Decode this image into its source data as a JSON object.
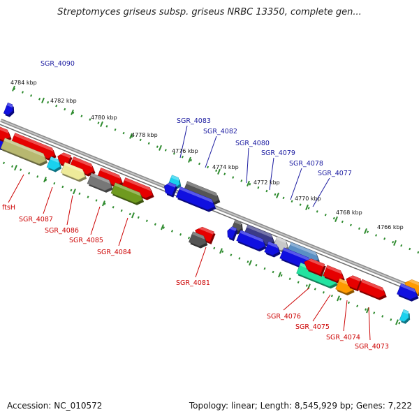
{
  "title": "Streptomyces griseus subsp. griseus NRBC 13350, complete gen...",
  "footer": {
    "accession": "Accession: NC_010572",
    "summary": "Topology: linear; Length: 8,545,929 bp; Genes: 7,222"
  },
  "colors": {
    "backbone": "#8c8c8c",
    "tick": "#2e8b2e",
    "label_top": "#1a1aa0",
    "label_bottom": "#cc0000",
    "red": "#e60000",
    "blue": "#1010e0",
    "cyan": "#1ad1ee",
    "olive": "#b8b870",
    "yellow": "#eeea9a",
    "gray": "#777777",
    "darkgray": "#555555",
    "green": "#6f9a1f",
    "purple": "#3b3b88",
    "steel": "#5a8fc4",
    "lightgray": "#c8c8c8",
    "teal": "#22e3a0",
    "orange": "#ff9a00"
  },
  "kbp_ticks": [
    "4784 kbp",
    "4782 kbp",
    "4780 kbp",
    "4778 kbp",
    "4776 kbp",
    "4774 kbp",
    "4772 kbp",
    "4770 kbp",
    "4768 kbp",
    "4766 kbp"
  ],
  "labels_top": [
    "SGR_4090",
    "SGR_4083",
    "SGR_4082",
    "SGR_4080",
    "SGR_4079",
    "SGR_4078",
    "SGR_4077"
  ],
  "labels_bottom": [
    "ftsH",
    "SGR_4087",
    "SGR_4086",
    "SGR_4085",
    "SGR_4084",
    "SGR_4081",
    "SGR_4076",
    "SGR_4075",
    "SGR_4074",
    "SGR_4073"
  ],
  "genes": [
    {
      "id": "top-0",
      "lane": -2,
      "start": 0,
      "end": 10,
      "dir": 1,
      "color": "blue"
    },
    {
      "id": "top-1",
      "lane": 2.4,
      "start": 0,
      "end": 20,
      "dir": 1,
      "color": "blue"
    },
    {
      "id": "top-2",
      "lane": 1.3,
      "start": 0,
      "end": 20,
      "dir": 1,
      "color": "red"
    },
    {
      "id": "top-3",
      "lane": 1.3,
      "start": 24,
      "end": 84,
      "dir": 1,
      "color": "red"
    },
    {
      "id": "top-4",
      "lane": 2.4,
      "start": 14,
      "end": 76,
      "dir": 1,
      "color": "olive"
    },
    {
      "id": "top-5",
      "lane": 1.3,
      "start": 88,
      "end": 104,
      "dir": -1,
      "color": "red"
    },
    {
      "id": "top-6",
      "lane": 2.4,
      "start": 80,
      "end": 96,
      "dir": 1,
      "color": "cyan"
    },
    {
      "id": "top-7",
      "lane": 1.3,
      "start": 108,
      "end": 140,
      "dir": 1,
      "color": "red"
    },
    {
      "id": "top-8",
      "lane": 2.4,
      "start": 100,
      "end": 132,
      "dir": 1,
      "color": "yellow"
    },
    {
      "id": "top-9",
      "lane": 1.3,
      "start": 147,
      "end": 180,
      "dir": 1,
      "color": "red"
    },
    {
      "id": "top-10",
      "lane": 2.4,
      "start": 138,
      "end": 170,
      "dir": 1,
      "color": "gray"
    },
    {
      "id": "top-11",
      "lane": 1.3,
      "start": 182,
      "end": 224,
      "dir": 1,
      "color": "red"
    },
    {
      "id": "top-12",
      "lane": 2.4,
      "start": 172,
      "end": 214,
      "dir": 1,
      "color": "green"
    },
    {
      "id": "top-13",
      "lane": -1.3,
      "start": 238,
      "end": 252,
      "dir": 1,
      "color": "cyan"
    },
    {
      "id": "top-14",
      "lane": -0.3,
      "start": 234,
      "end": 248,
      "dir": -1,
      "color": "blue"
    },
    {
      "id": "top-15",
      "lane": -1.3,
      "start": 260,
      "end": 308,
      "dir": 1,
      "color": "darkgray"
    },
    {
      "id": "top-16",
      "lane": -0.3,
      "start": 254,
      "end": 306,
      "dir": 1,
      "color": "blue"
    },
    {
      "id": "top-17",
      "lane": 3.5,
      "start": 294,
      "end": 318,
      "dir": -1,
      "color": "red"
    },
    {
      "id": "top-18",
      "lane": 4.5,
      "start": 292,
      "end": 314,
      "dir": 1,
      "color": "darkgray"
    },
    {
      "id": "top-19",
      "lane": 1.0,
      "start": 338,
      "end": 350,
      "dir": 1,
      "color": "darkgray"
    },
    {
      "id": "top-20",
      "lane": 2.0,
      "start": 334,
      "end": 344,
      "dir": -1,
      "color": "blue"
    },
    {
      "id": "top-21",
      "lane": 1.0,
      "start": 356,
      "end": 396,
      "dir": 1,
      "color": "purple"
    },
    {
      "id": "top-22",
      "lane": 2.0,
      "start": 350,
      "end": 388,
      "dir": 1,
      "color": "blue"
    },
    {
      "id": "top-23",
      "lane": 1.0,
      "start": 398,
      "end": 416,
      "dir": 1,
      "color": "lightgray"
    },
    {
      "id": "top-24",
      "lane": 2.0,
      "start": 390,
      "end": 408,
      "dir": 1,
      "color": "blue"
    },
    {
      "id": "top-25",
      "lane": 1.0,
      "start": 418,
      "end": 460,
      "dir": 1,
      "color": "steel"
    },
    {
      "id": "top-26",
      "lane": 2.0,
      "start": 412,
      "end": 454,
      "dir": 1,
      "color": "blue"
    },
    {
      "id": "top-27",
      "lane": 3.0,
      "start": 440,
      "end": 494,
      "dir": 1,
      "color": "teal"
    },
    {
      "id": "top-28",
      "lane": 2.0,
      "start": 444,
      "end": 470,
      "dir": -1,
      "color": "red"
    },
    {
      "id": "top-29",
      "lane": 2.0,
      "start": 474,
      "end": 500,
      "dir": 1,
      "color": "red"
    },
    {
      "id": "top-30",
      "lane": 3.0,
      "start": 496,
      "end": 518,
      "dir": 1,
      "color": "orange"
    },
    {
      "id": "top-31",
      "lane": 2.0,
      "start": 504,
      "end": 522,
      "dir": -1,
      "color": "red"
    },
    {
      "id": "top-32",
      "lane": 2.0,
      "start": 524,
      "end": 560,
      "dir": 1,
      "color": "red"
    },
    {
      "id": "top-33",
      "lane": -0.4,
      "start": 578,
      "end": 600,
      "dir": -1,
      "color": "orange"
    },
    {
      "id": "top-34",
      "lane": 0.6,
      "start": 574,
      "end": 600,
      "dir": 1,
      "color": "blue"
    },
    {
      "id": "top-35",
      "lane": 3.6,
      "start": 590,
      "end": 600,
      "dir": 1,
      "color": "cyan"
    }
  ]
}
